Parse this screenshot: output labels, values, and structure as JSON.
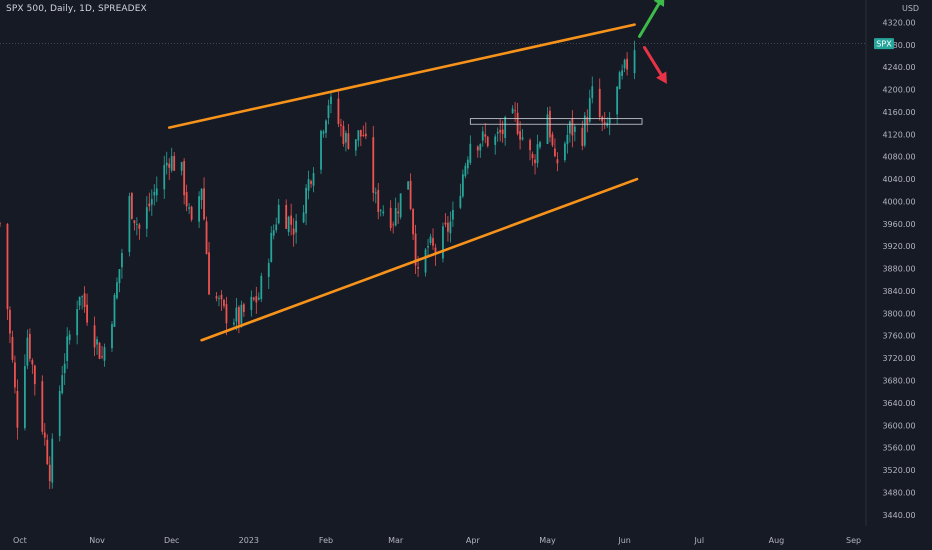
{
  "header": {
    "title": "SPX 500, Daily, 1D, SPREADEX",
    "currency": "USD"
  },
  "colors": {
    "background": "#161a25",
    "up": "#26a69a",
    "down": "#ef5350",
    "trendline": "#f7931a",
    "arrow_up": "#3dbb4a",
    "arrow_down": "#e83346",
    "price_tag": "#26a69a",
    "axis_text": "#b2b5be"
  },
  "chart_data": {
    "type": "candlestick",
    "symbol": "SPX",
    "price_tag": {
      "label": "SPX",
      "value": 4282
    },
    "ylim": [
      3420,
      4360
    ],
    "y_ticks": [
      4320,
      4280,
      4240,
      4200,
      4160,
      4120,
      4080,
      4040,
      4000,
      3960,
      3920,
      3880,
      3840,
      3800,
      3760,
      3720,
      3680,
      3640,
      3600,
      3560,
      3520,
      3480,
      3440
    ],
    "y_tick_labels": [
      "4320.00",
      "4280.00",
      "4240.00",
      "4200.00",
      "4160.00",
      "4120.00",
      "4080.00",
      "4040.00",
      "4000.00",
      "3960.00",
      "3920.00",
      "3880.00",
      "3840.00",
      "3800.00",
      "3760.00",
      "3720.00",
      "3680.00",
      "3640.00",
      "3600.00",
      "3560.00",
      "3520.00",
      "3480.00",
      "3440.00"
    ],
    "x_range": [
      "2022-09-23",
      "2023-09-06"
    ],
    "x_ticks": [
      {
        "date": "2022-10-01",
        "label": "Oct"
      },
      {
        "date": "2022-11-01",
        "label": "Nov"
      },
      {
        "date": "2022-12-01",
        "label": "Dec"
      },
      {
        "date": "2023-01-01",
        "label": "2023"
      },
      {
        "date": "2023-02-01",
        "label": "Feb"
      },
      {
        "date": "2023-03-01",
        "label": "Mar"
      },
      {
        "date": "2023-04-01",
        "label": "Apr"
      },
      {
        "date": "2023-05-01",
        "label": "May"
      },
      {
        "date": "2023-06-01",
        "label": "Jun"
      },
      {
        "date": "2023-07-01",
        "label": "Jul"
      },
      {
        "date": "2023-08-01",
        "label": "Aug"
      },
      {
        "date": "2023-09-01",
        "label": "Sep"
      }
    ],
    "anchors": [
      [
        "2022-09-23",
        3960
      ],
      [
        "2022-09-30",
        3610
      ],
      [
        "2022-10-04",
        3760
      ],
      [
        "2022-10-13",
        3520
      ],
      [
        "2022-10-18",
        3700
      ],
      [
        "2022-10-25",
        3840
      ],
      [
        "2022-11-03",
        3720
      ],
      [
        "2022-11-08",
        3820
      ],
      [
        "2022-11-14",
        4000
      ],
      [
        "2022-11-18",
        3950
      ],
      [
        "2022-11-30",
        4080
      ],
      [
        "2022-12-05",
        4050
      ],
      [
        "2022-12-09",
        3950
      ],
      [
        "2022-12-13",
        4030
      ],
      [
        "2022-12-16",
        3850
      ],
      [
        "2022-12-22",
        3800
      ],
      [
        "2022-12-28",
        3790
      ],
      [
        "2023-01-05",
        3830
      ],
      [
        "2023-01-13",
        3990
      ],
      [
        "2023-01-20",
        3950
      ],
      [
        "2023-01-27",
        4070
      ],
      [
        "2023-02-02",
        4180
      ],
      [
        "2023-02-09",
        4110
      ],
      [
        "2023-02-16",
        4120
      ],
      [
        "2023-02-21",
        4000
      ],
      [
        "2023-02-28",
        3970
      ],
      [
        "2023-03-06",
        4045
      ],
      [
        "2023-03-10",
        3860
      ],
      [
        "2023-03-14",
        3920
      ],
      [
        "2023-03-17",
        3910
      ],
      [
        "2023-03-24",
        3970
      ],
      [
        "2023-03-31",
        4110
      ],
      [
        "2023-04-10",
        4110
      ],
      [
        "2023-04-18",
        4150
      ],
      [
        "2023-04-25",
        4070
      ],
      [
        "2023-05-01",
        4160
      ],
      [
        "2023-05-04",
        4060
      ],
      [
        "2023-05-10",
        4130
      ],
      [
        "2023-05-15",
        4120
      ],
      [
        "2023-05-19",
        4190
      ],
      [
        "2023-05-24",
        4120
      ],
      [
        "2023-05-30",
        4210
      ],
      [
        "2023-06-05",
        4280
      ]
    ],
    "candle_range": [
      "2022-09-23",
      "2023-06-05"
    ],
    "trendlines": [
      {
        "name": "upper resistance",
        "start": [
          "2022-11-30",
          4132
        ],
        "end": [
          "2023-06-05",
          4316
        ]
      },
      {
        "name": "lower support",
        "start": [
          "2022-12-13",
          3752
        ],
        "end": [
          "2023-06-06",
          4040
        ]
      }
    ],
    "zone": {
      "start": "2023-03-31",
      "end": "2023-06-08",
      "top": 4148,
      "bottom": 4138
    },
    "projections": [
      {
        "direction": "up",
        "from": [
          "2023-06-07",
          4295
        ],
        "to": [
          "2023-06-17",
          4370
        ]
      },
      {
        "direction": "down",
        "from": [
          "2023-06-09",
          4275
        ],
        "to": [
          "2023-06-18",
          4210
        ]
      }
    ]
  }
}
